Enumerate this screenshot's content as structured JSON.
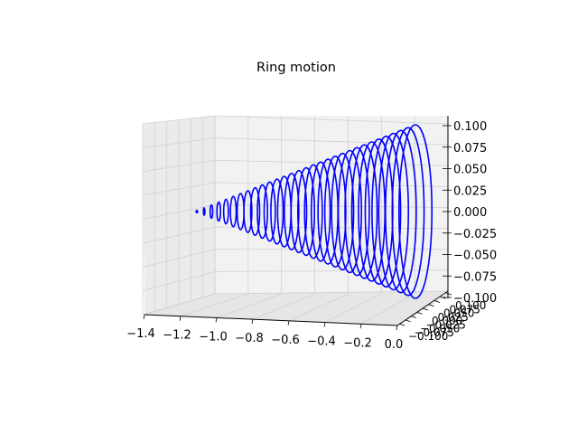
{
  "chart_data": {
    "type": "line",
    "projection": "3d",
    "title": "Ring motion",
    "xlabel": "",
    "ylabel": "",
    "zlabel": "",
    "xlim": [
      -1.4,
      0.0
    ],
    "ylim": [
      -0.1,
      0.1
    ],
    "zlim": [
      -0.1,
      0.1
    ],
    "x_ticks": [
      "−1.4",
      "−1.2",
      "−1.0",
      "−0.8",
      "−0.6",
      "−0.4",
      "−0.2",
      "0.0"
    ],
    "y_ticks": [
      "−0.100",
      "−0.075",
      "−0.050",
      "−0.025",
      "0.000",
      "0.025",
      "0.050",
      "0.075",
      "0.100"
    ],
    "z_ticks": [
      "−0.100",
      "−0.075",
      "−0.050",
      "−0.025",
      "0.000",
      "0.025",
      "0.050",
      "0.075",
      "0.100"
    ],
    "grid": true,
    "series_color": "#0000ff",
    "rings": {
      "count": 31,
      "x_start": -1.25,
      "x_end": 0.0,
      "radius_start": 0.001,
      "radius_end": 0.1
    }
  }
}
